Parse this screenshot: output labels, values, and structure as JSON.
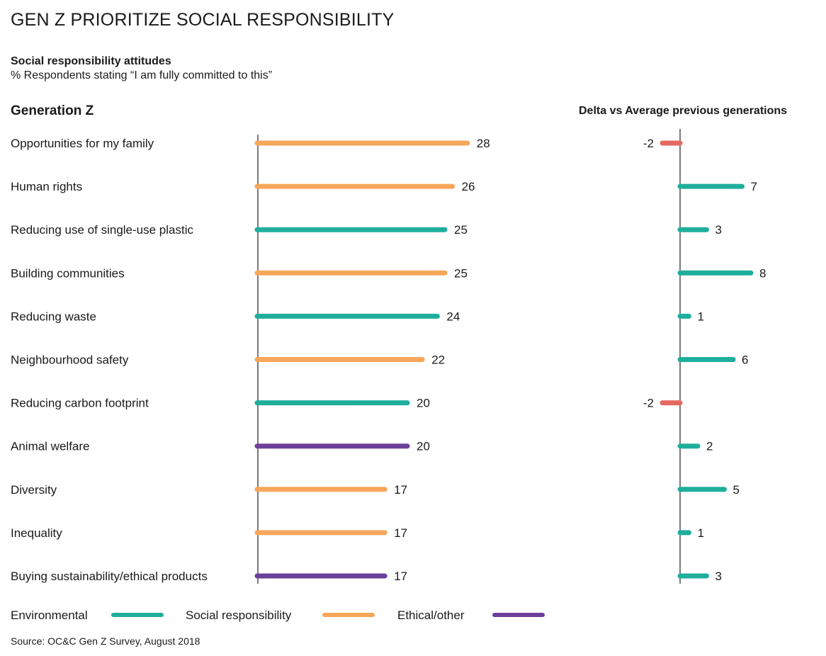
{
  "title": "GEN Z PRIORITIZE SOCIAL RESPONSIBILITY",
  "subtitle": "Social responsibility attitudes",
  "note": "% Respondents stating “I am fully committed to this”",
  "source": "Source: OC&C Gen Z Survey, August 2018",
  "colors": {
    "Environmental": "#1fae9c",
    "Social responsibility": "#f7a65a",
    "Ethical/other": "#6e3f99",
    "negative": "#e5695f",
    "axis": "#222222"
  },
  "chart_data": [
    {
      "type": "bar",
      "orientation": "horizontal",
      "title": "Generation Z",
      "categories": [
        "Opportunities for my family",
        "Human rights",
        "Reducing use of single-use plastic",
        "Building communities",
        "Reducing waste",
        "Neighbourhood safety",
        "Reducing carbon footprint",
        "Animal welfare",
        "Diversity",
        "Inequality",
        "Buying sustainability/ethical products"
      ],
      "values": [
        28,
        26,
        25,
        25,
        24,
        22,
        20,
        20,
        17,
        17,
        17
      ],
      "groups": [
        "Social responsibility",
        "Social responsibility",
        "Environmental",
        "Social responsibility",
        "Environmental",
        "Social responsibility",
        "Environmental",
        "Ethical/other",
        "Social responsibility",
        "Social responsibility",
        "Ethical/other"
      ],
      "xlim": [
        0,
        30
      ],
      "legend": [
        "Environmental",
        "Social responsibility",
        "Ethical/other"
      ],
      "legend_position": "bottom-left"
    },
    {
      "type": "bar",
      "orientation": "horizontal",
      "title": "Delta vs Average previous generations",
      "categories": [
        "Opportunities for my family",
        "Human rights",
        "Reducing use of single-use plastic",
        "Building communities",
        "Reducing waste",
        "Neighbourhood safety",
        "Reducing carbon footprint",
        "Animal welfare",
        "Diversity",
        "Inequality",
        "Buying sustainability/ethical products"
      ],
      "values": [
        -2,
        7,
        3,
        8,
        1,
        6,
        -2,
        2,
        5,
        1,
        3
      ],
      "value_labels": [
        "-2",
        "7",
        "3",
        "8",
        "1",
        "6",
        "-2",
        "2",
        "5",
        "1",
        "3"
      ],
      "xlim": [
        -5,
        10
      ]
    }
  ]
}
